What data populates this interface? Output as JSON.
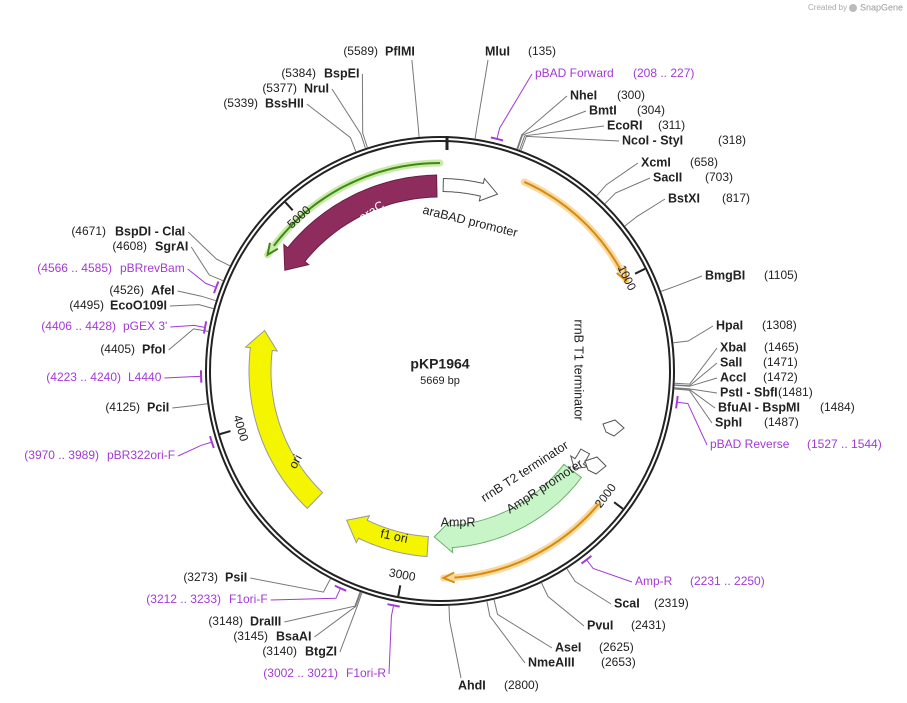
{
  "header": {
    "credit": "Created by",
    "brand": "SnapGene"
  },
  "plasmid": {
    "name": "pKP1964",
    "length": "5669 bp"
  },
  "ticks": [
    "1000",
    "2000",
    "3000",
    "4000",
    "5000"
  ],
  "sites": [
    {
      "name": "MluI",
      "pos": "(135)"
    },
    {
      "name": "NheI",
      "pos": "(300)"
    },
    {
      "name": "BmtI",
      "pos": "(304)"
    },
    {
      "name": "EcoRI",
      "pos": "(311)"
    },
    {
      "name": "NcoI - StyI",
      "pos": "(318)"
    },
    {
      "name": "XcmI",
      "pos": "(658)"
    },
    {
      "name": "SacII",
      "pos": "(703)"
    },
    {
      "name": "BstXI",
      "pos": "(817)"
    },
    {
      "name": "BmgBI",
      "pos": "(1105)"
    },
    {
      "name": "HpaI",
      "pos": "(1308)"
    },
    {
      "name": "XbaI",
      "pos": "(1465)"
    },
    {
      "name": "SalI",
      "pos": "(1471)"
    },
    {
      "name": "AccI",
      "pos": "(1472)"
    },
    {
      "name": "PstI - SbfI",
      "pos": "(1481)"
    },
    {
      "name": "BfuAI - BspMI",
      "pos": "(1484)"
    },
    {
      "name": "SphI",
      "pos": "(1487)"
    },
    {
      "name": "ScaI",
      "pos": "(2319)"
    },
    {
      "name": "PvuI",
      "pos": "(2431)"
    },
    {
      "name": "AseI",
      "pos": "(2625)"
    },
    {
      "name": "NmeAIII",
      "pos": "(2653)"
    },
    {
      "name": "AhdI",
      "pos": "(2800)"
    },
    {
      "name": "BtgZI",
      "pos": "(3140)"
    },
    {
      "name": "BsaAI",
      "pos": "(3145)"
    },
    {
      "name": "DraIII",
      "pos": "(3148)"
    },
    {
      "name": "PsiI",
      "pos": "(3273)"
    },
    {
      "name": "PciI",
      "pos": "(4125)"
    },
    {
      "name": "PfoI",
      "pos": "(4405)"
    },
    {
      "name": "EcoO109I",
      "pos": "(4495)"
    },
    {
      "name": "AfeI",
      "pos": "(4526)"
    },
    {
      "name": "SgrAI",
      "pos": "(4608)"
    },
    {
      "name": "BspDI - ClaI",
      "pos": "(4671)"
    },
    {
      "name": "BssHII",
      "pos": "(5339)"
    },
    {
      "name": "NruI",
      "pos": "(5377)"
    },
    {
      "name": "BspEI",
      "pos": "(5384)"
    },
    {
      "name": "PflMI",
      "pos": "(5589)"
    }
  ],
  "primers": [
    {
      "name": "pBAD Forward",
      "range": "(208 .. 227)"
    },
    {
      "name": "pBAD Reverse",
      "range": "(1527 .. 1544)"
    },
    {
      "name": "Amp-R",
      "range": "(2231 .. 2250)"
    },
    {
      "name": "F1ori-R",
      "range": "(3002 .. 3021)"
    },
    {
      "name": "F1ori-F",
      "range": "(3212 .. 3233)"
    },
    {
      "name": "pBR322ori-F",
      "range": "(3970 .. 3989)"
    },
    {
      "name": "L4440",
      "range": "(4223 .. 4240)"
    },
    {
      "name": "pGEX 3'",
      "range": "(4406 .. 4428)"
    },
    {
      "name": "pBRrevBam",
      "range": "(4566 .. 4585)"
    }
  ],
  "features": [
    {
      "label": "araC"
    },
    {
      "label": "araBAD promoter"
    },
    {
      "label": "rrnB T1 terminator"
    },
    {
      "label": "rrnB T2 terminator"
    },
    {
      "label": "AmpR promoter"
    },
    {
      "label": "AmpR"
    },
    {
      "label": "f1 ori"
    },
    {
      "label": "ori"
    }
  ]
}
